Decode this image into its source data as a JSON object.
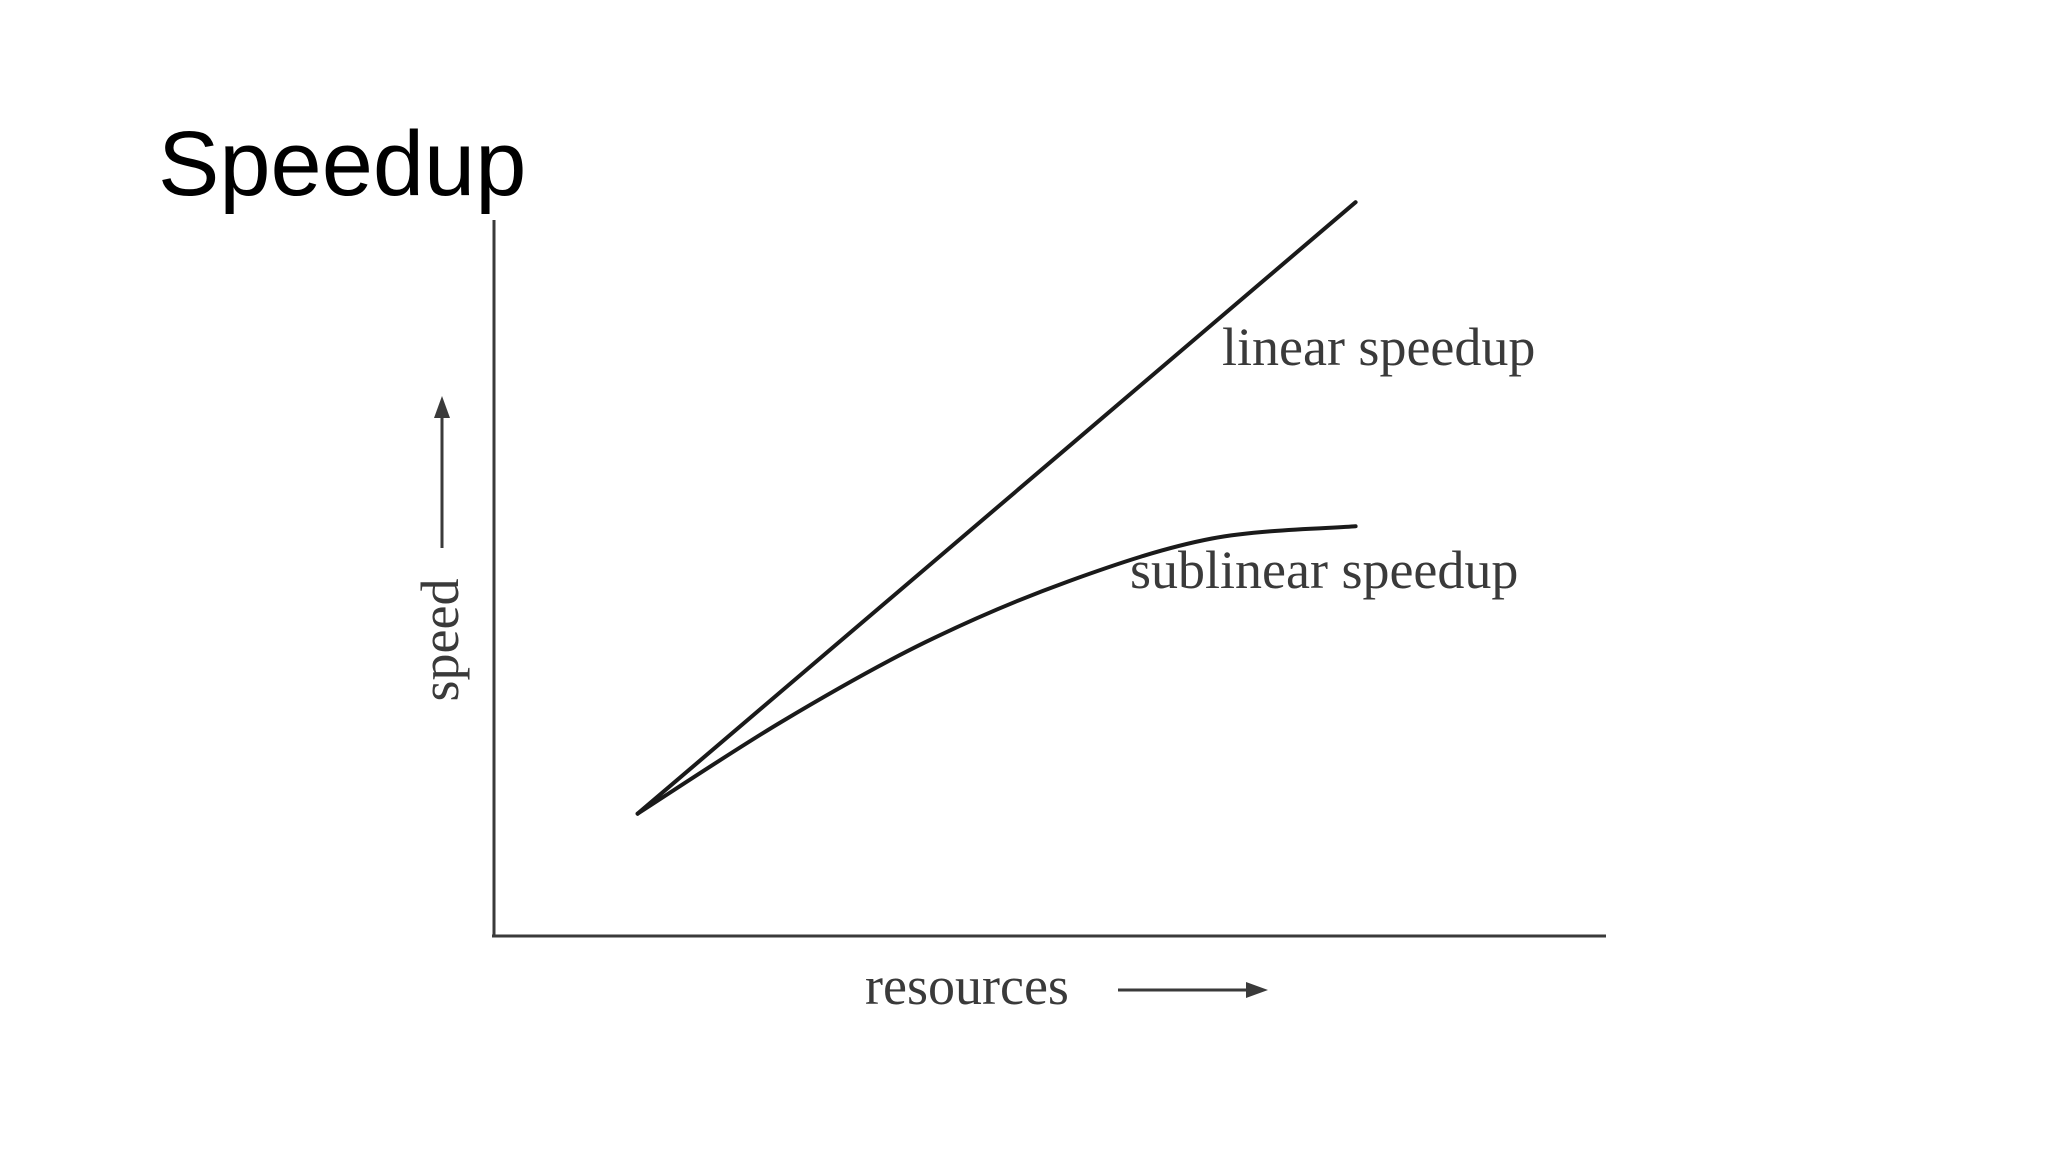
{
  "slide": {
    "title": "Speedup"
  },
  "chart_data": {
    "type": "line",
    "xlabel": "resources",
    "ylabel": "speed",
    "x": [
      1,
      2,
      3,
      4,
      5,
      6
    ],
    "ylim": [
      0,
      6.5
    ],
    "xlim": [
      0,
      7.5
    ],
    "series": [
      {
        "name": "linear speedup",
        "values": [
          1,
          2,
          3,
          4,
          5,
          6
        ]
      },
      {
        "name": "sublinear speedup",
        "values": [
          1,
          1.75,
          2.4,
          2.9,
          3.25,
          3.35
        ]
      }
    ],
    "grid": false,
    "legend": "inline-right",
    "colors": {
      "axis": "#3a3a3a",
      "line": "#1a1a1a",
      "text": "#3a3a3a"
    }
  }
}
